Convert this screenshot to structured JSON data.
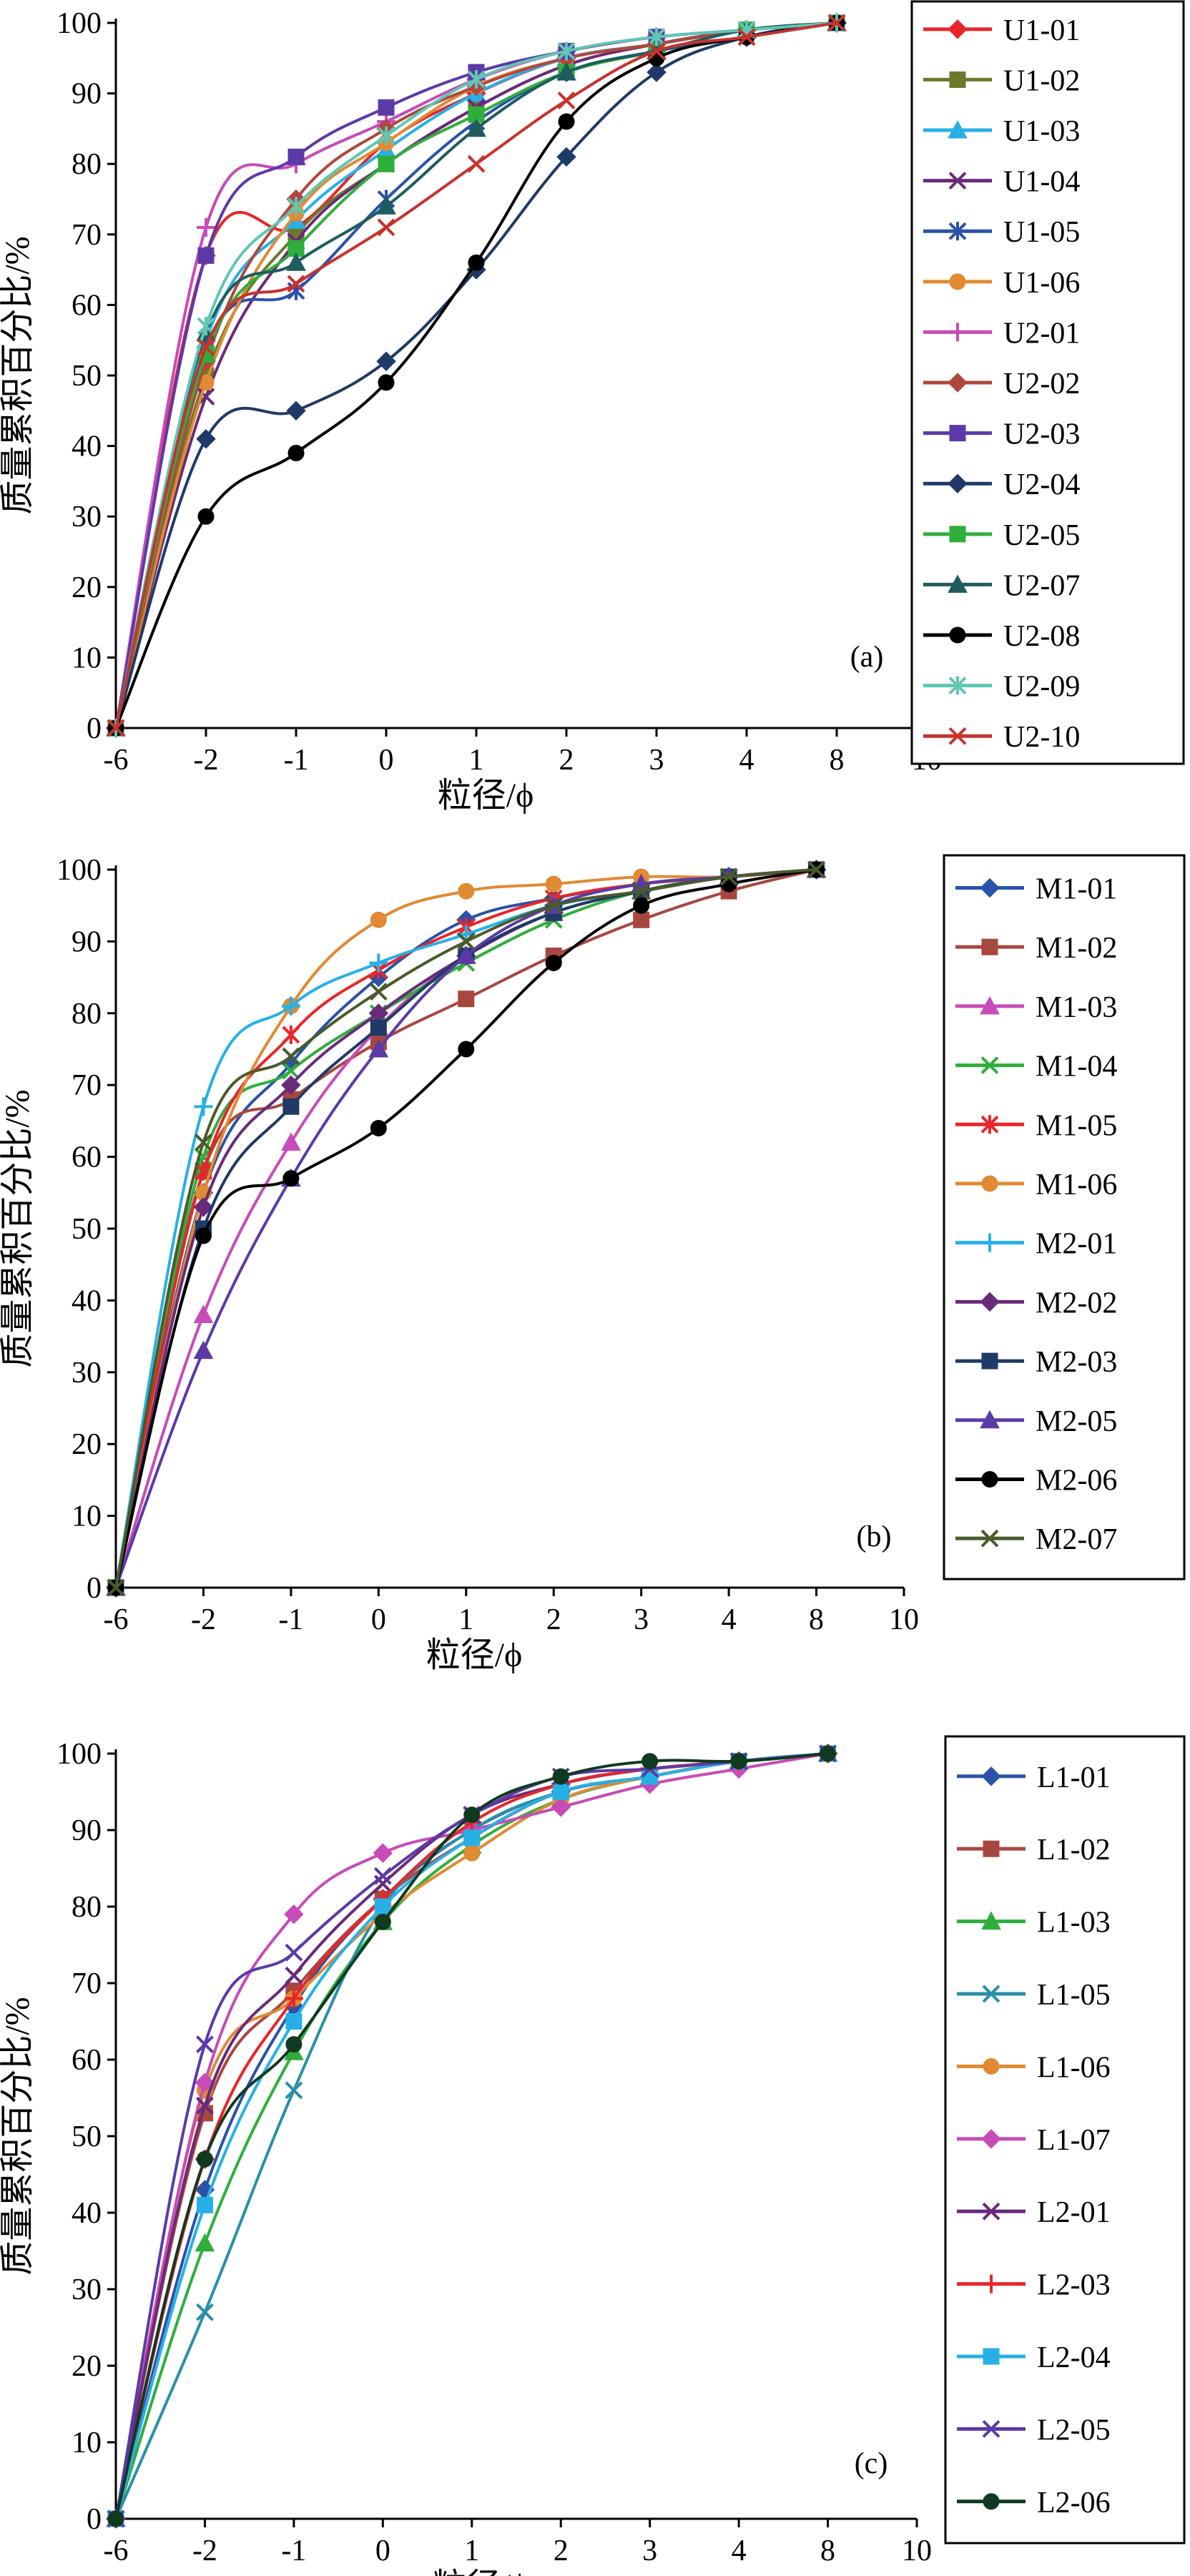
{
  "chart_data": [
    {
      "type": "line",
      "panel_label": "(a)",
      "xlabel": "粒径/ϕ",
      "ylabel": "质量累积百分比/%",
      "x_ticks": [
        "-6",
        "-2",
        "-1",
        "0",
        "1",
        "2",
        "3",
        "4",
        "8",
        "10"
      ],
      "y_ticks": [
        "0",
        "10",
        "20",
        "30",
        "40",
        "50",
        "60",
        "70",
        "80",
        "90",
        "100"
      ],
      "ylim": [
        0,
        100
      ],
      "categories": [
        "-6",
        "-2",
        "-1",
        "0",
        "1",
        "2",
        "3",
        "4",
        "8"
      ],
      "legend_position": "right",
      "series": [
        {
          "name": "U1-01",
          "color": "#e8262a",
          "marker": "diamond",
          "values": [
            0,
            67,
            71,
            83,
            90,
            95,
            97,
            99,
            100
          ]
        },
        {
          "name": "U1-02",
          "color": "#6b7a2a",
          "marker": "square",
          "values": [
            0,
            50,
            70,
            80,
            88,
            94,
            97,
            99,
            100
          ]
        },
        {
          "name": "U1-03",
          "color": "#27b0e6",
          "marker": "triangle",
          "values": [
            0,
            55,
            72,
            82,
            90,
            95,
            97,
            99,
            100
          ]
        },
        {
          "name": "U1-04",
          "color": "#6a2a7a",
          "marker": "x",
          "values": [
            0,
            47,
            69,
            80,
            88,
            94,
            97,
            99,
            100
          ]
        },
        {
          "name": "U1-05",
          "color": "#2a52a8",
          "marker": "star",
          "values": [
            0,
            54,
            62,
            75,
            86,
            93,
            96,
            98,
            100
          ]
        },
        {
          "name": "U1-06",
          "color": "#e08a33",
          "marker": "circle",
          "values": [
            0,
            49,
            73,
            83,
            91,
            95,
            97,
            99,
            100
          ]
        },
        {
          "name": "U2-01",
          "color": "#c74bb8",
          "marker": "plus",
          "values": [
            0,
            71,
            80,
            86,
            92,
            96,
            98,
            99,
            100
          ]
        },
        {
          "name": "U2-02",
          "color": "#b0473f",
          "marker": "diamond",
          "values": [
            0,
            52,
            75,
            85,
            91,
            95,
            97,
            99,
            100
          ]
        },
        {
          "name": "U2-03",
          "color": "#5b3aa8",
          "marker": "square",
          "values": [
            0,
            67,
            81,
            88,
            93,
            96,
            98,
            99,
            100
          ]
        },
        {
          "name": "U2-04",
          "color": "#1f3a66",
          "marker": "diamond",
          "values": [
            0,
            41,
            45,
            52,
            65,
            81,
            93,
            98,
            100
          ]
        },
        {
          "name": "U2-05",
          "color": "#2fae3c",
          "marker": "square",
          "values": [
            0,
            53,
            68,
            80,
            87,
            93,
            96,
            99,
            100
          ]
        },
        {
          "name": "U2-07",
          "color": "#1e5c5f",
          "marker": "triangle",
          "values": [
            0,
            56,
            66,
            74,
            85,
            93,
            96,
            99,
            100
          ]
        },
        {
          "name": "U2-08",
          "color": "#000000",
          "marker": "circle",
          "values": [
            0,
            30,
            39,
            49,
            66,
            86,
            95,
            98,
            100
          ]
        },
        {
          "name": "U2-09",
          "color": "#5fc7b3",
          "marker": "star",
          "values": [
            0,
            57,
            74,
            84,
            92,
            96,
            98,
            99,
            100
          ]
        },
        {
          "name": "U2-10",
          "color": "#c8322e",
          "marker": "x",
          "values": [
            0,
            54,
            63,
            71,
            80,
            89,
            96,
            98,
            100
          ]
        }
      ]
    },
    {
      "type": "line",
      "panel_label": "(b)",
      "xlabel": "粒径/ϕ",
      "ylabel": "质量累积百分比/%",
      "x_ticks": [
        "-6",
        "-2",
        "-1",
        "0",
        "1",
        "2",
        "3",
        "4",
        "8",
        "10"
      ],
      "y_ticks": [
        "0",
        "10",
        "20",
        "30",
        "40",
        "50",
        "60",
        "70",
        "80",
        "90",
        "100"
      ],
      "ylim": [
        0,
        100
      ],
      "categories": [
        "-6",
        "-2",
        "-1",
        "0",
        "1",
        "2",
        "3",
        "4",
        "8"
      ],
      "legend_position": "right",
      "series": [
        {
          "name": "M1-01",
          "color": "#2a52a8",
          "marker": "diamond",
          "values": [
            0,
            55,
            73,
            85,
            93,
            96,
            98,
            99,
            100
          ]
        },
        {
          "name": "M1-02",
          "color": "#a8473f",
          "marker": "square",
          "values": [
            0,
            58,
            68,
            76,
            82,
            88,
            93,
            97,
            100
          ]
        },
        {
          "name": "M1-03",
          "color": "#c74bb8",
          "marker": "triangle",
          "values": [
            0,
            38,
            62,
            78,
            88,
            94,
            97,
            99,
            100
          ]
        },
        {
          "name": "M1-04",
          "color": "#2fae3c",
          "marker": "x",
          "values": [
            0,
            60,
            72,
            80,
            87,
            93,
            97,
            99,
            100
          ]
        },
        {
          "name": "M1-05",
          "color": "#e8262a",
          "marker": "star",
          "values": [
            0,
            58,
            77,
            86,
            92,
            96,
            98,
            99,
            100
          ]
        },
        {
          "name": "M1-06",
          "color": "#e08a33",
          "marker": "circle",
          "values": [
            0,
            55,
            81,
            93,
            97,
            98,
            99,
            99,
            100
          ]
        },
        {
          "name": "M2-01",
          "color": "#27b0e6",
          "marker": "plus",
          "values": [
            0,
            67,
            81,
            87,
            91,
            95,
            97,
            99,
            100
          ]
        },
        {
          "name": "M2-02",
          "color": "#6a2a7a",
          "marker": "diamond",
          "values": [
            0,
            53,
            70,
            80,
            88,
            94,
            97,
            99,
            100
          ]
        },
        {
          "name": "M2-03",
          "color": "#1f3a66",
          "marker": "square",
          "values": [
            0,
            50,
            67,
            78,
            88,
            94,
            97,
            99,
            100
          ]
        },
        {
          "name": "M2-05",
          "color": "#5b3aa8",
          "marker": "triangle",
          "values": [
            0,
            33,
            57,
            75,
            88,
            95,
            98,
            99,
            100
          ]
        },
        {
          "name": "M2-06",
          "color": "#000000",
          "marker": "circle",
          "values": [
            0,
            49,
            57,
            64,
            75,
            87,
            95,
            98,
            100
          ]
        },
        {
          "name": "M2-07",
          "color": "#4a5a2a",
          "marker": "x",
          "values": [
            0,
            62,
            74,
            83,
            90,
            95,
            97,
            99,
            100
          ]
        }
      ]
    },
    {
      "type": "line",
      "panel_label": "(c)",
      "xlabel": "粒径/ϕ",
      "ylabel": "质量累积百分比/%",
      "x_ticks": [
        "-6",
        "-2",
        "-1",
        "0",
        "1",
        "2",
        "3",
        "4",
        "8",
        "10"
      ],
      "y_ticks": [
        "0",
        "10",
        "20",
        "30",
        "40",
        "50",
        "60",
        "70",
        "80",
        "90",
        "100"
      ],
      "ylim": [
        0,
        100
      ],
      "categories": [
        "-6",
        "-2",
        "-1",
        "0",
        "1",
        "2",
        "3",
        "4",
        "8"
      ],
      "legend_position": "right",
      "series": [
        {
          "name": "L1-01",
          "color": "#2a52a8",
          "marker": "diamond",
          "values": [
            0,
            43,
            67,
            81,
            90,
            95,
            97,
            99,
            100
          ]
        },
        {
          "name": "L1-02",
          "color": "#a8473f",
          "marker": "square",
          "values": [
            0,
            53,
            69,
            81,
            89,
            95,
            97,
            99,
            100
          ]
        },
        {
          "name": "L1-03",
          "color": "#2fae3c",
          "marker": "triangle",
          "values": [
            0,
            36,
            61,
            78,
            88,
            94,
            97,
            99,
            100
          ]
        },
        {
          "name": "L1-05",
          "color": "#2a8fa8",
          "marker": "x",
          "values": [
            0,
            27,
            56,
            80,
            90,
            95,
            97,
            99,
            100
          ]
        },
        {
          "name": "L1-06",
          "color": "#e08a33",
          "marker": "circle",
          "values": [
            0,
            56,
            68,
            79,
            87,
            94,
            97,
            99,
            100
          ]
        },
        {
          "name": "L1-07",
          "color": "#c74bb8",
          "marker": "diamond",
          "values": [
            0,
            57,
            79,
            87,
            90,
            93,
            96,
            98,
            100
          ]
        },
        {
          "name": "L2-01",
          "color": "#6a2a7a",
          "marker": "x",
          "values": [
            0,
            54,
            71,
            83,
            92,
            96,
            98,
            99,
            100
          ]
        },
        {
          "name": "L2-03",
          "color": "#e8262a",
          "marker": "plus",
          "values": [
            0,
            47,
            68,
            81,
            91,
            96,
            98,
            99,
            100
          ]
        },
        {
          "name": "L2-04",
          "color": "#27b0e6",
          "marker": "square",
          "values": [
            0,
            41,
            65,
            80,
            89,
            95,
            97,
            99,
            100
          ]
        },
        {
          "name": "L2-05",
          "color": "#5b3aa8",
          "marker": "x",
          "values": [
            0,
            62,
            74,
            84,
            92,
            97,
            98,
            99,
            100
          ]
        },
        {
          "name": "L2-06",
          "color": "#0f3a20",
          "marker": "circle",
          "values": [
            0,
            47,
            62,
            78,
            92,
            97,
            99,
            99,
            100
          ]
        }
      ]
    }
  ]
}
